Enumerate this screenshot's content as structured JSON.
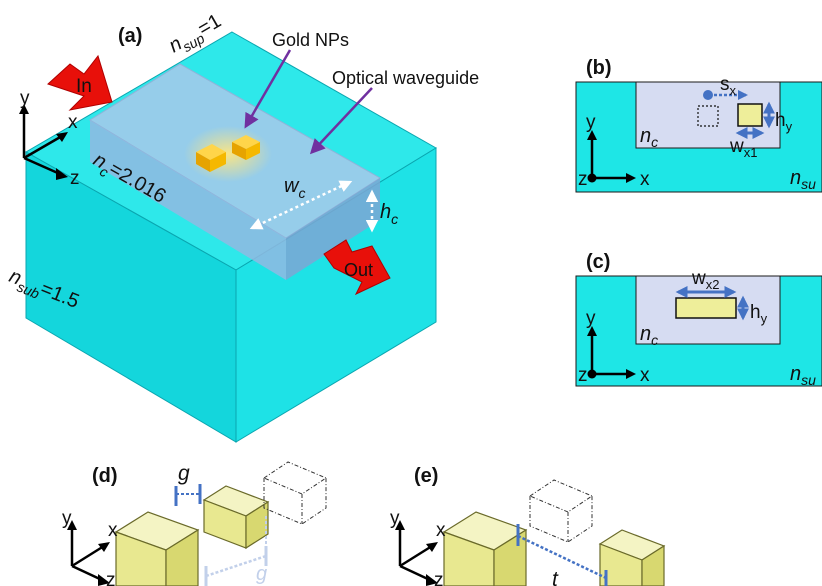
{
  "panels": {
    "a": {
      "tag": "(a)",
      "n_sup": "n",
      "n_sup_sub": "sup",
      "n_sup_val": "=1",
      "gold": "Gold NPs",
      "waveguide": "Optical waveguide",
      "in": "In",
      "out": "Out",
      "nc": "n",
      "nc_sub": "c",
      "nc_val": "=2.016",
      "wc": "w",
      "wc_sub": "c",
      "hc": "h",
      "hc_sub": "c",
      "n_sub": "n",
      "n_sub_sub": "sub",
      "n_sub_val": "=1.5",
      "axis_x": "x",
      "axis_y": "y",
      "axis_z": "z"
    },
    "b": {
      "tag": "(b)",
      "sx": "s",
      "sx_sub": "x",
      "hy": "h",
      "hy_sub": "y",
      "wx1": "w",
      "wx1_sub": "x1",
      "nc": "n",
      "nc_sub": "c",
      "nsu": "n",
      "nsu_sub": "su",
      "axis_x": "x",
      "axis_y": "y",
      "axis_z": "z"
    },
    "c": {
      "tag": "(c)",
      "wx2": "w",
      "wx2_sub": "x2",
      "hy": "h",
      "hy_sub": "y",
      "nc": "n",
      "nc_sub": "c",
      "nsu": "n",
      "nsu_sub": "su",
      "axis_x": "x",
      "axis_y": "y",
      "axis_z": "z"
    },
    "d": {
      "tag": "(d)",
      "g1": "g",
      "g2": "g",
      "axis_x": "x",
      "axis_y": "y",
      "axis_z": "z"
    },
    "e": {
      "tag": "(e)",
      "t": "t",
      "axis_x": "x",
      "axis_y": "y",
      "axis_z": "z"
    }
  },
  "colors": {
    "substrate": "#1ee6e6",
    "substrate_edge": "#0aa6b0",
    "waveguide": "#9ec3e8",
    "core_2d": "#d6dcf2",
    "gold": "#f2b400",
    "particle": "#eeee9a",
    "arrow_red": "#e8100a",
    "arrow_blue": "#4472c4",
    "pointer": "#7030a0"
  }
}
